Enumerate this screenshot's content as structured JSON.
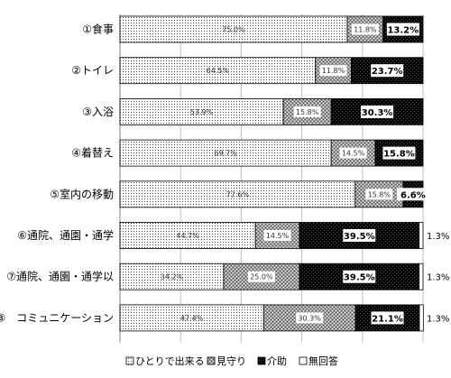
{
  "chart_data": {
    "type": "bar",
    "orientation": "horizontal",
    "stacked": "100%",
    "categories": [
      "①食事",
      "②トイレ",
      "③入浴",
      "④着替え",
      "⑤室内の移動",
      "⑥通院、通園・通学",
      "⑦通院、通園・通学以",
      "⑧　コミュニケーション"
    ],
    "series": [
      {
        "name": "ひとりで出来る",
        "pattern": "dots",
        "values": [
          75.0,
          64.5,
          53.9,
          69.7,
          77.6,
          44.7,
          34.2,
          47.4
        ],
        "labels": [
          "75.0%",
          "64.5%",
          "53.9%",
          "69.7%",
          "77.6%",
          "44.7%",
          "34.2%",
          "47.4%"
        ]
      },
      {
        "name": "見守り",
        "pattern": "crosshatch",
        "values": [
          11.8,
          11.8,
          15.8,
          14.5,
          15.8,
          14.5,
          25.0,
          30.3
        ],
        "labels": [
          "11.8%",
          "11.8%",
          "15.8%",
          "14.5%",
          "15.8%",
          "14.5%",
          "25.0%",
          "30.3%"
        ]
      },
      {
        "name": "介助",
        "pattern": "dark",
        "values": [
          13.2,
          23.7,
          30.3,
          15.8,
          6.6,
          39.5,
          39.5,
          21.1
        ],
        "labels": [
          "13.2%",
          "23.7%",
          "30.3%",
          "15.8%",
          "6.6%",
          "39.5%",
          "39.5%",
          "21.1%"
        ]
      },
      {
        "name": "無回答",
        "pattern": "white",
        "values": [
          0,
          0,
          0,
          0,
          0,
          1.3,
          1.3,
          1.3
        ],
        "labels": [
          "",
          "",
          "",
          "",
          "",
          "1.3%",
          "1.3%",
          "1.3%"
        ]
      }
    ],
    "xlim": [
      0,
      100
    ],
    "grid": true,
    "legend": "bottom",
    "title": "",
    "xlabel": "",
    "ylabel": ""
  }
}
